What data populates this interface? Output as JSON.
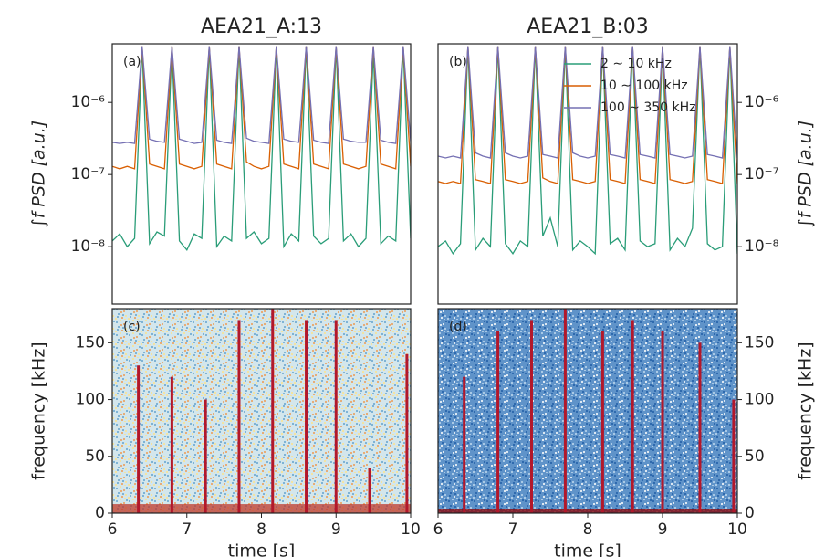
{
  "chart_data": [
    {
      "type": "line",
      "title": "AEA21_A:13",
      "panel_label": "(a)",
      "ylabel": "∫f PSD [a.u.]",
      "axis_side": "left",
      "log_y": true,
      "xlim": [
        6,
        10
      ],
      "ylim": [
        1.6e-09,
        6.5e-06
      ],
      "yticks": [
        {
          "value": 1e-08,
          "label": "10⁻⁸"
        },
        {
          "value": 1e-07,
          "label": "10⁻⁷"
        },
        {
          "value": 1e-06,
          "label": "10⁻⁶"
        }
      ],
      "x": [
        6,
        6.1,
        6.2,
        6.3,
        6.4,
        6.5,
        6.6,
        6.7,
        6.8,
        6.9,
        7,
        7.1,
        7.2,
        7.3,
        7.4,
        7.5,
        7.6,
        7.7,
        7.8,
        7.9,
        8,
        8.1,
        8.2,
        8.3,
        8.4,
        8.5,
        8.6,
        8.7,
        8.8,
        8.9,
        9,
        9.1,
        9.2,
        9.3,
        9.4,
        9.5,
        9.6,
        9.7,
        9.8,
        9.9,
        10
      ],
      "series": [
        {
          "color": "#2a9d78",
          "values": [
            1.2e-08,
            1.5e-08,
            1e-08,
            1.3e-08,
            6e-06,
            1.1e-08,
            1.6e-08,
            1.4e-08,
            6e-06,
            1.2e-08,
            9e-09,
            1.5e-08,
            1.3e-08,
            6e-06,
            1e-08,
            1.4e-08,
            1.2e-08,
            6e-06,
            1.3e-08,
            1.6e-08,
            1.1e-08,
            1.3e-08,
            6e-06,
            1e-08,
            1.5e-08,
            1.2e-08,
            6e-06,
            1.4e-08,
            1.1e-08,
            1.3e-08,
            6e-06,
            1.2e-08,
            1.5e-08,
            1e-08,
            1.3e-08,
            5e-06,
            1.1e-08,
            1.4e-08,
            1.2e-08,
            6e-06,
            1.3e-08
          ]
        },
        {
          "color": "#d95f02",
          "values": [
            1.3e-07,
            1.2e-07,
            1.3e-07,
            1.2e-07,
            6e-06,
            1.4e-07,
            1.3e-07,
            1.2e-07,
            6e-06,
            1.4e-07,
            1.3e-07,
            1.2e-07,
            1.3e-07,
            6e-06,
            1.4e-07,
            1.3e-07,
            1.2e-07,
            6e-06,
            1.5e-07,
            1.3e-07,
            1.2e-07,
            1.3e-07,
            6e-06,
            1.4e-07,
            1.3e-07,
            1.2e-07,
            6e-06,
            1.4e-07,
            1.3e-07,
            1.2e-07,
            6e-06,
            1.4e-07,
            1.3e-07,
            1.2e-07,
            1.3e-07,
            6e-06,
            1.4e-07,
            1.3e-07,
            1.2e-07,
            6e-06,
            1.3e-07
          ]
        },
        {
          "color": "#7570b3",
          "values": [
            2.8e-07,
            2.7e-07,
            2.8e-07,
            2.7e-07,
            6e-06,
            3.1e-07,
            2.9e-07,
            2.8e-07,
            6e-06,
            3.1e-07,
            2.9e-07,
            2.7e-07,
            2.8e-07,
            6e-06,
            3e-07,
            2.8e-07,
            2.7e-07,
            6e-06,
            3.2e-07,
            2.9e-07,
            2.8e-07,
            2.7e-07,
            6e-06,
            3.1e-07,
            2.9e-07,
            2.8e-07,
            6e-06,
            3e-07,
            2.8e-07,
            2.7e-07,
            6e-06,
            3.1e-07,
            2.9e-07,
            2.8e-07,
            2.8e-07,
            6e-06,
            3e-07,
            2.8e-07,
            2.7e-07,
            6e-06,
            2.9e-07
          ]
        }
      ]
    },
    {
      "type": "line",
      "title": "AEA21_B:03",
      "panel_label": "(b)",
      "ylabel": "∫f PSD [a.u.]",
      "axis_side": "right",
      "log_y": true,
      "legend": "upper right",
      "xlim": [
        6,
        10
      ],
      "ylim": [
        1.6e-09,
        6.5e-06
      ],
      "yticks": [
        {
          "value": 1e-08,
          "label": "10⁻⁸"
        },
        {
          "value": 1e-07,
          "label": "10⁻⁷"
        },
        {
          "value": 1e-06,
          "label": "10⁻⁶"
        }
      ],
      "x": [
        6,
        6.1,
        6.2,
        6.3,
        6.4,
        6.5,
        6.6,
        6.7,
        6.8,
        6.9,
        7,
        7.1,
        7.2,
        7.3,
        7.4,
        7.5,
        7.6,
        7.7,
        7.8,
        7.9,
        8,
        8.1,
        8.2,
        8.3,
        8.4,
        8.5,
        8.6,
        8.7,
        8.8,
        8.9,
        9,
        9.1,
        9.2,
        9.3,
        9.4,
        9.5,
        9.6,
        9.7,
        9.8,
        9.9,
        10
      ],
      "series": [
        {
          "name": "2 ∼ 10 kHz",
          "color": "#2a9d78",
          "values": [
            1e-08,
            1.2e-08,
            8e-09,
            1.1e-08,
            6e-06,
            9e-09,
            1.3e-08,
            1e-08,
            6e-06,
            1.1e-08,
            8e-09,
            1.2e-08,
            1e-08,
            6e-06,
            1.4e-08,
            2.5e-08,
            1e-08,
            6e-06,
            9e-09,
            1.2e-08,
            1e-08,
            8e-09,
            6e-06,
            1.1e-08,
            1.3e-08,
            9e-09,
            6e-06,
            1.2e-08,
            1e-08,
            1.1e-08,
            6e-06,
            9e-09,
            1.3e-08,
            1e-08,
            1.8e-08,
            6e-06,
            1.1e-08,
            9e-09,
            1e-08,
            6e-06,
            8e-09
          ]
        },
        {
          "name": "10 ∼ 100 kHz",
          "color": "#d95f02",
          "values": [
            8e-08,
            7.5e-08,
            8e-08,
            7.5e-08,
            6e-06,
            8.5e-08,
            8e-08,
            7.5e-08,
            6e-06,
            8.5e-08,
            8e-08,
            7.5e-08,
            8e-08,
            6e-06,
            9e-08,
            8e-08,
            7.5e-08,
            6e-06,
            8.5e-08,
            8e-08,
            7.5e-08,
            8e-08,
            6e-06,
            8.5e-08,
            8e-08,
            7.5e-08,
            6e-06,
            8.5e-08,
            8e-08,
            7.5e-08,
            6e-06,
            8.5e-08,
            8e-08,
            7.5e-08,
            8e-08,
            6e-06,
            8.5e-08,
            8e-08,
            7.5e-08,
            6e-06,
            7.5e-08
          ]
        },
        {
          "name": "100 ∼ 350 kHz",
          "color": "#7570b3",
          "values": [
            1.8e-07,
            1.7e-07,
            1.8e-07,
            1.7e-07,
            6e-06,
            2e-07,
            1.8e-07,
            1.7e-07,
            6e-06,
            2e-07,
            1.8e-07,
            1.7e-07,
            1.8e-07,
            6e-06,
            1.9e-07,
            1.8e-07,
            1.7e-07,
            6e-06,
            2e-07,
            1.8e-07,
            1.7e-07,
            1.8e-07,
            6e-06,
            1.9e-07,
            1.8e-07,
            1.7e-07,
            6e-06,
            1.9e-07,
            1.8e-07,
            1.7e-07,
            6e-06,
            1.9e-07,
            1.8e-07,
            1.7e-07,
            1.8e-07,
            6e-06,
            1.9e-07,
            1.8e-07,
            1.7e-07,
            6e-06,
            1.7e-07
          ]
        }
      ]
    },
    {
      "type": "spectrogram",
      "panel_label": "(c)",
      "ylabel": "frequency [kHz]",
      "xlabel": "time [s]",
      "axis_side": "left",
      "xlim": [
        6,
        10
      ],
      "ylim": [
        0,
        180
      ],
      "xticks": [
        6,
        7,
        8,
        9,
        10
      ],
      "yticks": [
        0,
        50,
        100,
        150
      ],
      "background_colors": [
        "#d3e6ec",
        "#7fb3d5",
        "#f3e3a2",
        "#e7ad78"
      ],
      "low_band": {
        "top": 8,
        "color": "#c0392b"
      },
      "color": "#b2182b",
      "x": [
        6.35,
        6.8,
        7.25,
        7.7,
        8.15,
        8.6,
        9.0,
        9.45,
        9.95
      ],
      "values": [
        130,
        120,
        100,
        170,
        180,
        170,
        170,
        40,
        140
      ]
    },
    {
      "type": "spectrogram",
      "panel_label": "(d)",
      "ylabel": "frequency [kHz]",
      "xlabel": "time [s]",
      "axis_side": "right",
      "xlim": [
        6,
        10
      ],
      "ylim": [
        0,
        180
      ],
      "xticks": [
        6,
        7,
        8,
        9,
        10
      ],
      "yticks": [
        0,
        50,
        100,
        150
      ],
      "background_colors": [
        "#5f93c9",
        "#2f6aae",
        "#a9c9e6",
        "#dde8f2"
      ],
      "low_band": {
        "top": 4,
        "color": "#8b0000"
      },
      "color": "#b2182b",
      "x": [
        6.35,
        6.8,
        7.25,
        7.7,
        8.2,
        8.6,
        9.0,
        9.5,
        9.95
      ],
      "values": [
        120,
        160,
        170,
        180,
        160,
        170,
        160,
        150,
        100
      ]
    }
  ]
}
